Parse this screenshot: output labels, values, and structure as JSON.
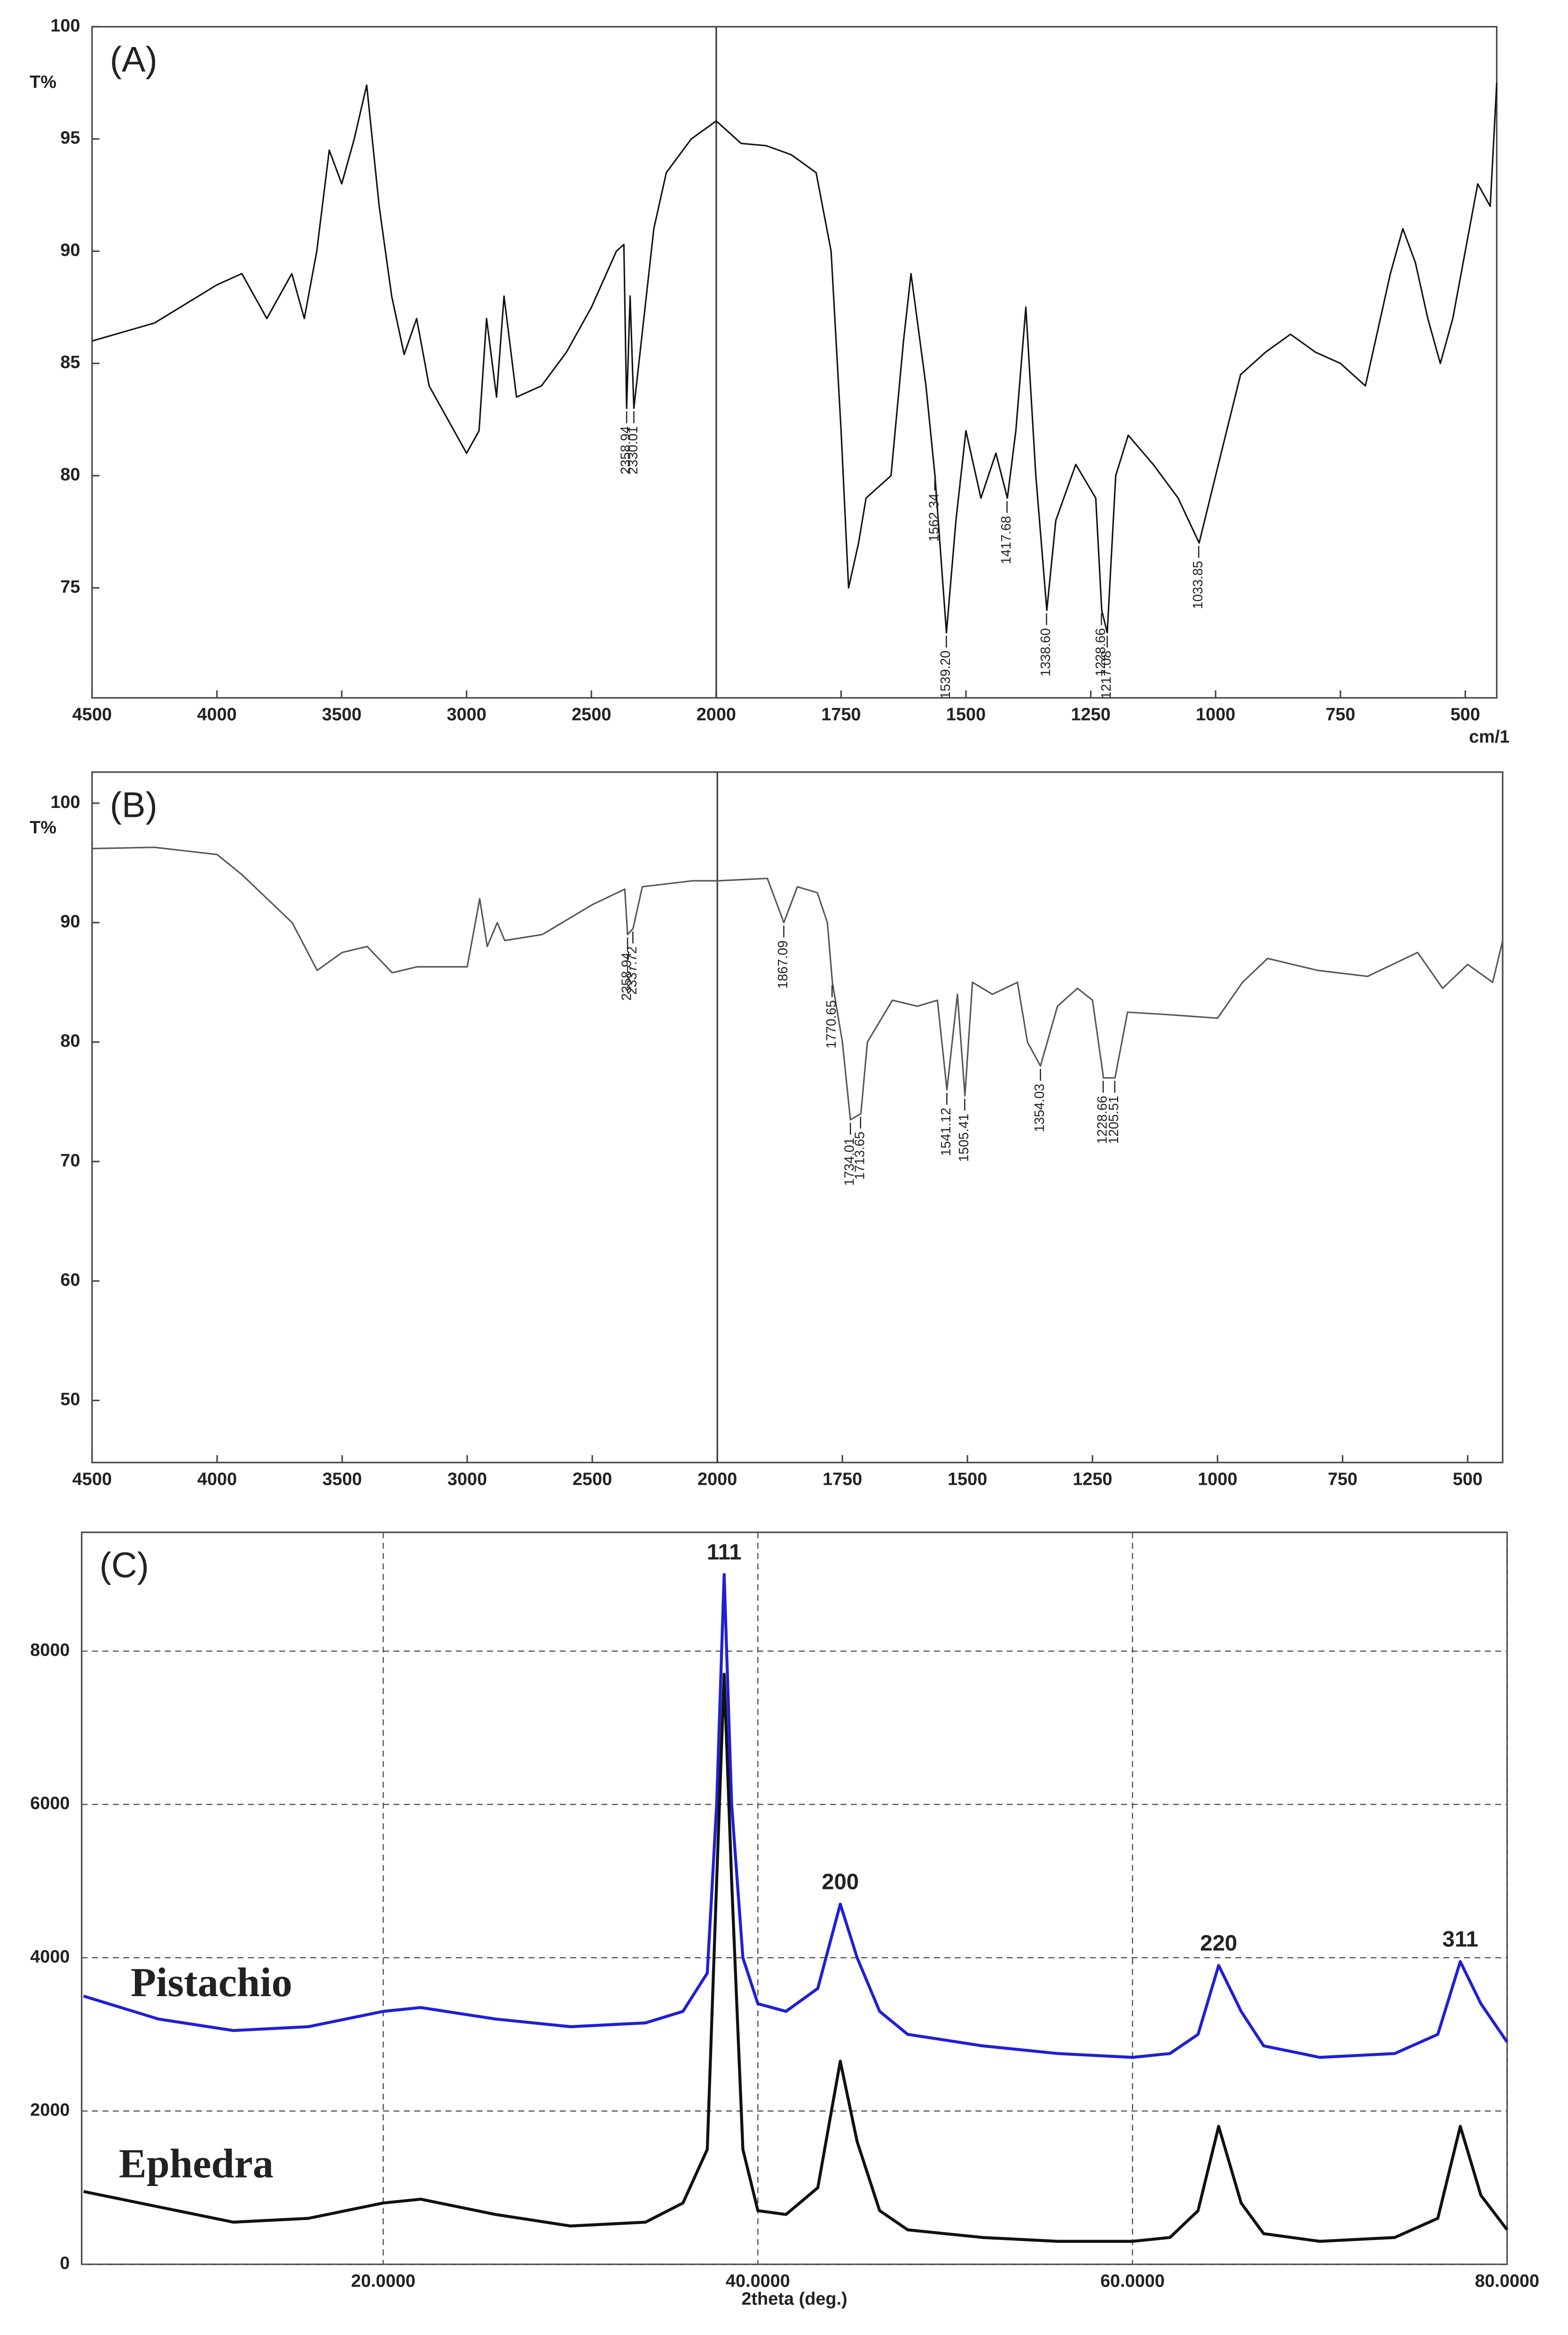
{
  "chart_data": [
    {
      "type": "line",
      "panel_label": "(A)",
      "ylabel": "T%",
      "xlabel": "cm/1",
      "color": "#111111",
      "x": [
        4500,
        4250,
        4000,
        3900,
        3800,
        3700,
        3650,
        3600,
        3550,
        3500,
        3450,
        3400,
        3350,
        3300,
        3250,
        3200,
        3150,
        3050,
        3000,
        2950,
        2920,
        2880,
        2850,
        2800,
        2700,
        2600,
        2500,
        2400,
        2370,
        2358.94,
        2345,
        2330,
        2300,
        2250,
        2200,
        2100,
        2000,
        1950,
        1900,
        1850,
        1800,
        1770,
        1750,
        1735,
        1715,
        1700,
        1650,
        1625,
        1610,
        1580,
        1562,
        1539,
        1520,
        1500,
        1470,
        1440,
        1417,
        1400,
        1380,
        1360,
        1338,
        1320,
        1280,
        1240,
        1228,
        1217,
        1200,
        1175,
        1125,
        1075,
        1033,
        1000,
        950,
        900,
        850,
        800,
        750,
        700,
        650,
        625,
        600,
        575,
        550,
        525,
        500,
        475,
        450,
        437
      ],
      "values": [
        86,
        86.8,
        88.5,
        89,
        87,
        89,
        87,
        90,
        94.5,
        93,
        95,
        97.4,
        92,
        88,
        85.4,
        87,
        84,
        82,
        81,
        82,
        87,
        83.5,
        88,
        83.5,
        84,
        85.5,
        87.5,
        90,
        90.3,
        83,
        88,
        83,
        86,
        91,
        93.5,
        95,
        95.8,
        94.8,
        94.7,
        94.3,
        93.5,
        90,
        82,
        75,
        77,
        79,
        80,
        86,
        89,
        84,
        80,
        73,
        78,
        82,
        79,
        81,
        79,
        82,
        87.5,
        80,
        74,
        78,
        80.5,
        79,
        74,
        73,
        80,
        81.8,
        80.5,
        79,
        77,
        80,
        84.5,
        85.5,
        86.3,
        85.5,
        85,
        84,
        89,
        91,
        89.5,
        87,
        85,
        87,
        90,
        93,
        92,
        97.5
      ],
      "xlim": [
        4500,
        437
      ],
      "ylim": [
        70.1,
        100
      ],
      "xticks": [
        4500,
        4000,
        3500,
        3000,
        2500,
        2000,
        1750,
        1500,
        1250,
        1000,
        750,
        500
      ],
      "yticks": [
        75,
        80,
        85,
        90,
        95,
        100
      ],
      "vline": 2000,
      "annotations": [
        {
          "text": "2358.94",
          "x": 2358.94,
          "y": 83
        },
        {
          "text": "2330.01",
          "x": 2330.01,
          "y": 83
        },
        {
          "text": "1562.34",
          "x": 1562.34,
          "y": 80
        },
        {
          "text": "1539.20",
          "x": 1539.2,
          "y": 73
        },
        {
          "text": "1417.68",
          "x": 1417.68,
          "y": 79
        },
        {
          "text": "1338.60",
          "x": 1338.6,
          "y": 74
        },
        {
          "text": "1228.66",
          "x": 1228.66,
          "y": 74
        },
        {
          "text": "1217.08",
          "x": 1217.08,
          "y": 73
        },
        {
          "text": "1033.85",
          "x": 1033.85,
          "y": 77
        }
      ]
    },
    {
      "type": "line",
      "panel_label": "(B)",
      "ylabel": "T%",
      "color": "#555555",
      "x": [
        4500,
        4250,
        4000,
        3900,
        3800,
        3700,
        3600,
        3500,
        3400,
        3300,
        3200,
        3000,
        2950,
        2920,
        2880,
        2850,
        2700,
        2500,
        2370,
        2358.94,
        2337,
        2300,
        2100,
        2000,
        1900,
        1867,
        1840,
        1800,
        1780,
        1770,
        1750,
        1734,
        1713,
        1700,
        1650,
        1600,
        1560,
        1541,
        1520,
        1505,
        1490,
        1450,
        1400,
        1380,
        1354,
        1320,
        1280,
        1250,
        1228,
        1205,
        1180,
        1100,
        1000,
        950,
        900,
        800,
        700,
        600,
        550,
        500,
        450,
        430
      ],
      "values": [
        96.2,
        96.3,
        95.7,
        94,
        92,
        90,
        86,
        87.5,
        88,
        85.8,
        86.3,
        86.3,
        92,
        88,
        90,
        88.5,
        89,
        91.5,
        92.8,
        89,
        89.5,
        93,
        93.5,
        93.5,
        93.7,
        90,
        93,
        92.5,
        90,
        85,
        80,
        73.5,
        74,
        80,
        83.5,
        83,
        83.5,
        76,
        84,
        75.5,
        85,
        84,
        85,
        80,
        78,
        83,
        84.5,
        83.5,
        77,
        77,
        82.5,
        82.3,
        82,
        85,
        87,
        86,
        85.5,
        87.5,
        84.5,
        86.5,
        85,
        88.5
      ],
      "xlim": [
        4500,
        430
      ],
      "ylim": [
        44.8,
        102.6
      ],
      "xticks": [
        4500,
        4000,
        3500,
        3000,
        2500,
        2000,
        1750,
        1500,
        1250,
        1000,
        750,
        500
      ],
      "yticks": [
        50,
        60,
        70,
        80,
        90,
        100
      ],
      "vline": 2000,
      "annotations": [
        {
          "text": "2358.94",
          "x": 2358.94,
          "y": 89
        },
        {
          "text": "2337.72",
          "x": 2337.72,
          "y": 89.5
        },
        {
          "text": "1867.09",
          "x": 1867.09,
          "y": 90
        },
        {
          "text": "1770.65",
          "x": 1770.65,
          "y": 85
        },
        {
          "text": "1734.01",
          "x": 1734.01,
          "y": 73.5
        },
        {
          "text": "1713.65",
          "x": 1713.65,
          "y": 74
        },
        {
          "text": "1541.12",
          "x": 1541.12,
          "y": 76
        },
        {
          "text": "1505.41",
          "x": 1505.41,
          "y": 75.5
        },
        {
          "text": "1354.03",
          "x": 1354.03,
          "y": 78
        },
        {
          "text": "1228.66",
          "x": 1228.66,
          "y": 77
        },
        {
          "text": "1205.51",
          "x": 1205.51,
          "y": 77
        }
      ]
    },
    {
      "type": "line",
      "panel_label": "(C)",
      "xlabel": "2theta (deg.)",
      "grid": true,
      "x": [
        4,
        8,
        12,
        16,
        20,
        22,
        26,
        30,
        34,
        36,
        37.3,
        37.8,
        38.2,
        38.6,
        39.2,
        40,
        41.5,
        43.2,
        44.4,
        45.3,
        46.5,
        48,
        52,
        56,
        60,
        62,
        63.5,
        64.6,
        65.8,
        67,
        70,
        74,
        76.3,
        77.5,
        78.6,
        80
      ],
      "series": [
        {
          "name": "Pistachio",
          "color": "#1f1fd6",
          "values": [
            3500,
            3200,
            3050,
            3100,
            3300,
            3350,
            3200,
            3100,
            3150,
            3300,
            3800,
            6000,
            9000,
            6000,
            4000,
            3400,
            3300,
            3600,
            4700,
            4000,
            3300,
            3000,
            2850,
            2750,
            2700,
            2750,
            3000,
            3900,
            3300,
            2850,
            2700,
            2750,
            3000,
            3950,
            3400,
            2900
          ]
        },
        {
          "name": "Ephedra",
          "color": "#111111",
          "values": [
            950,
            750,
            550,
            600,
            800,
            850,
            650,
            500,
            550,
            800,
            1500,
            5000,
            7700,
            5000,
            1500,
            700,
            650,
            1000,
            2650,
            1600,
            700,
            450,
            350,
            300,
            300,
            350,
            700,
            1800,
            800,
            400,
            300,
            350,
            600,
            1800,
            900,
            450
          ]
        }
      ],
      "xlim": [
        3.9,
        80
      ],
      "ylim": [
        0,
        9550
      ],
      "xticks": [
        {
          "value": 20,
          "label": "20.0000"
        },
        {
          "value": 40,
          "label": "40.0000"
        },
        {
          "value": 60,
          "label": "60.0000"
        },
        {
          "value": 80,
          "label": "80.0000"
        }
      ],
      "yticks": [
        0,
        2000,
        4000,
        6000,
        8000
      ],
      "annotations": [
        {
          "text": "111",
          "x": 38.2,
          "y": 9000
        },
        {
          "text": "200",
          "x": 44.4,
          "y": 4700
        },
        {
          "text": "220",
          "x": 64.6,
          "y": 3900
        },
        {
          "text": "311",
          "x": 77.5,
          "y": 3950
        }
      ]
    }
  ]
}
